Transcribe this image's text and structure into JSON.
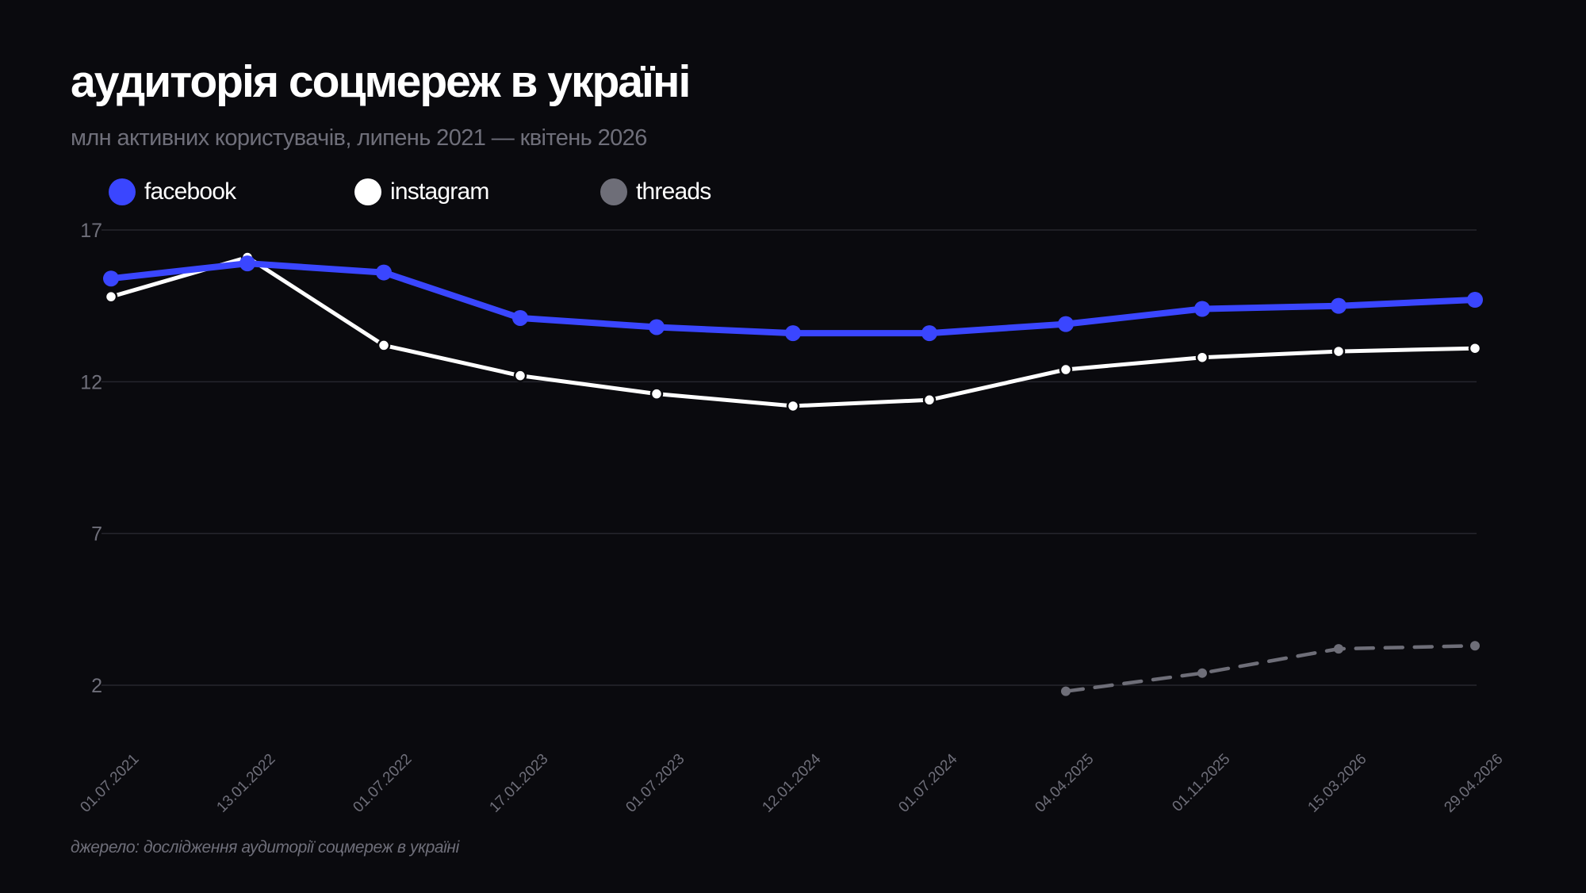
{
  "header": {
    "title": "аудиторія соцмереж в україні",
    "subtitle": "млн активних користувачів, липень 2021 — квітень 2026"
  },
  "footer": {
    "source": "джерело: дослідження аудиторії соцмереж в україні"
  },
  "colors": {
    "background": "#0a0a0e",
    "facebook": "#3a46ff",
    "instagram": "#ffffff",
    "threads": "#6e6e78",
    "grid": "#26262d",
    "axis_text": "#6f6f7a"
  },
  "chart_data": {
    "type": "line",
    "title": "аудиторія соцмереж в україні",
    "subtitle": "млн активних користувачів, липень 2021 — квітень 2026",
    "categories": [
      "01.07.2021",
      "13.01.2022",
      "01.07.2022",
      "17.01.2023",
      "01.07.2023",
      "12.01.2024",
      "01.07.2024",
      "04.04.2025",
      "01.11.2025",
      "15.03.2026",
      "29.04.2026"
    ],
    "series": [
      {
        "name": "facebook",
        "values": [
          15.4,
          15.9,
          15.6,
          14.1,
          13.8,
          13.6,
          13.6,
          13.9,
          14.4,
          14.5,
          14.7
        ]
      },
      {
        "name": "instagram",
        "values": [
          14.8,
          16.1,
          13.2,
          12.2,
          11.6,
          11.2,
          11.4,
          12.4,
          12.8,
          13.0,
          13.1
        ]
      },
      {
        "name": "threads",
        "values": [
          null,
          null,
          null,
          null,
          null,
          null,
          null,
          1.8,
          2.4,
          3.2,
          3.3
        ]
      }
    ],
    "y_ticks": [
      2,
      7,
      12,
      17
    ],
    "ylim": [
      0,
      17
    ],
    "grid": true,
    "legend_position": "top-left"
  }
}
